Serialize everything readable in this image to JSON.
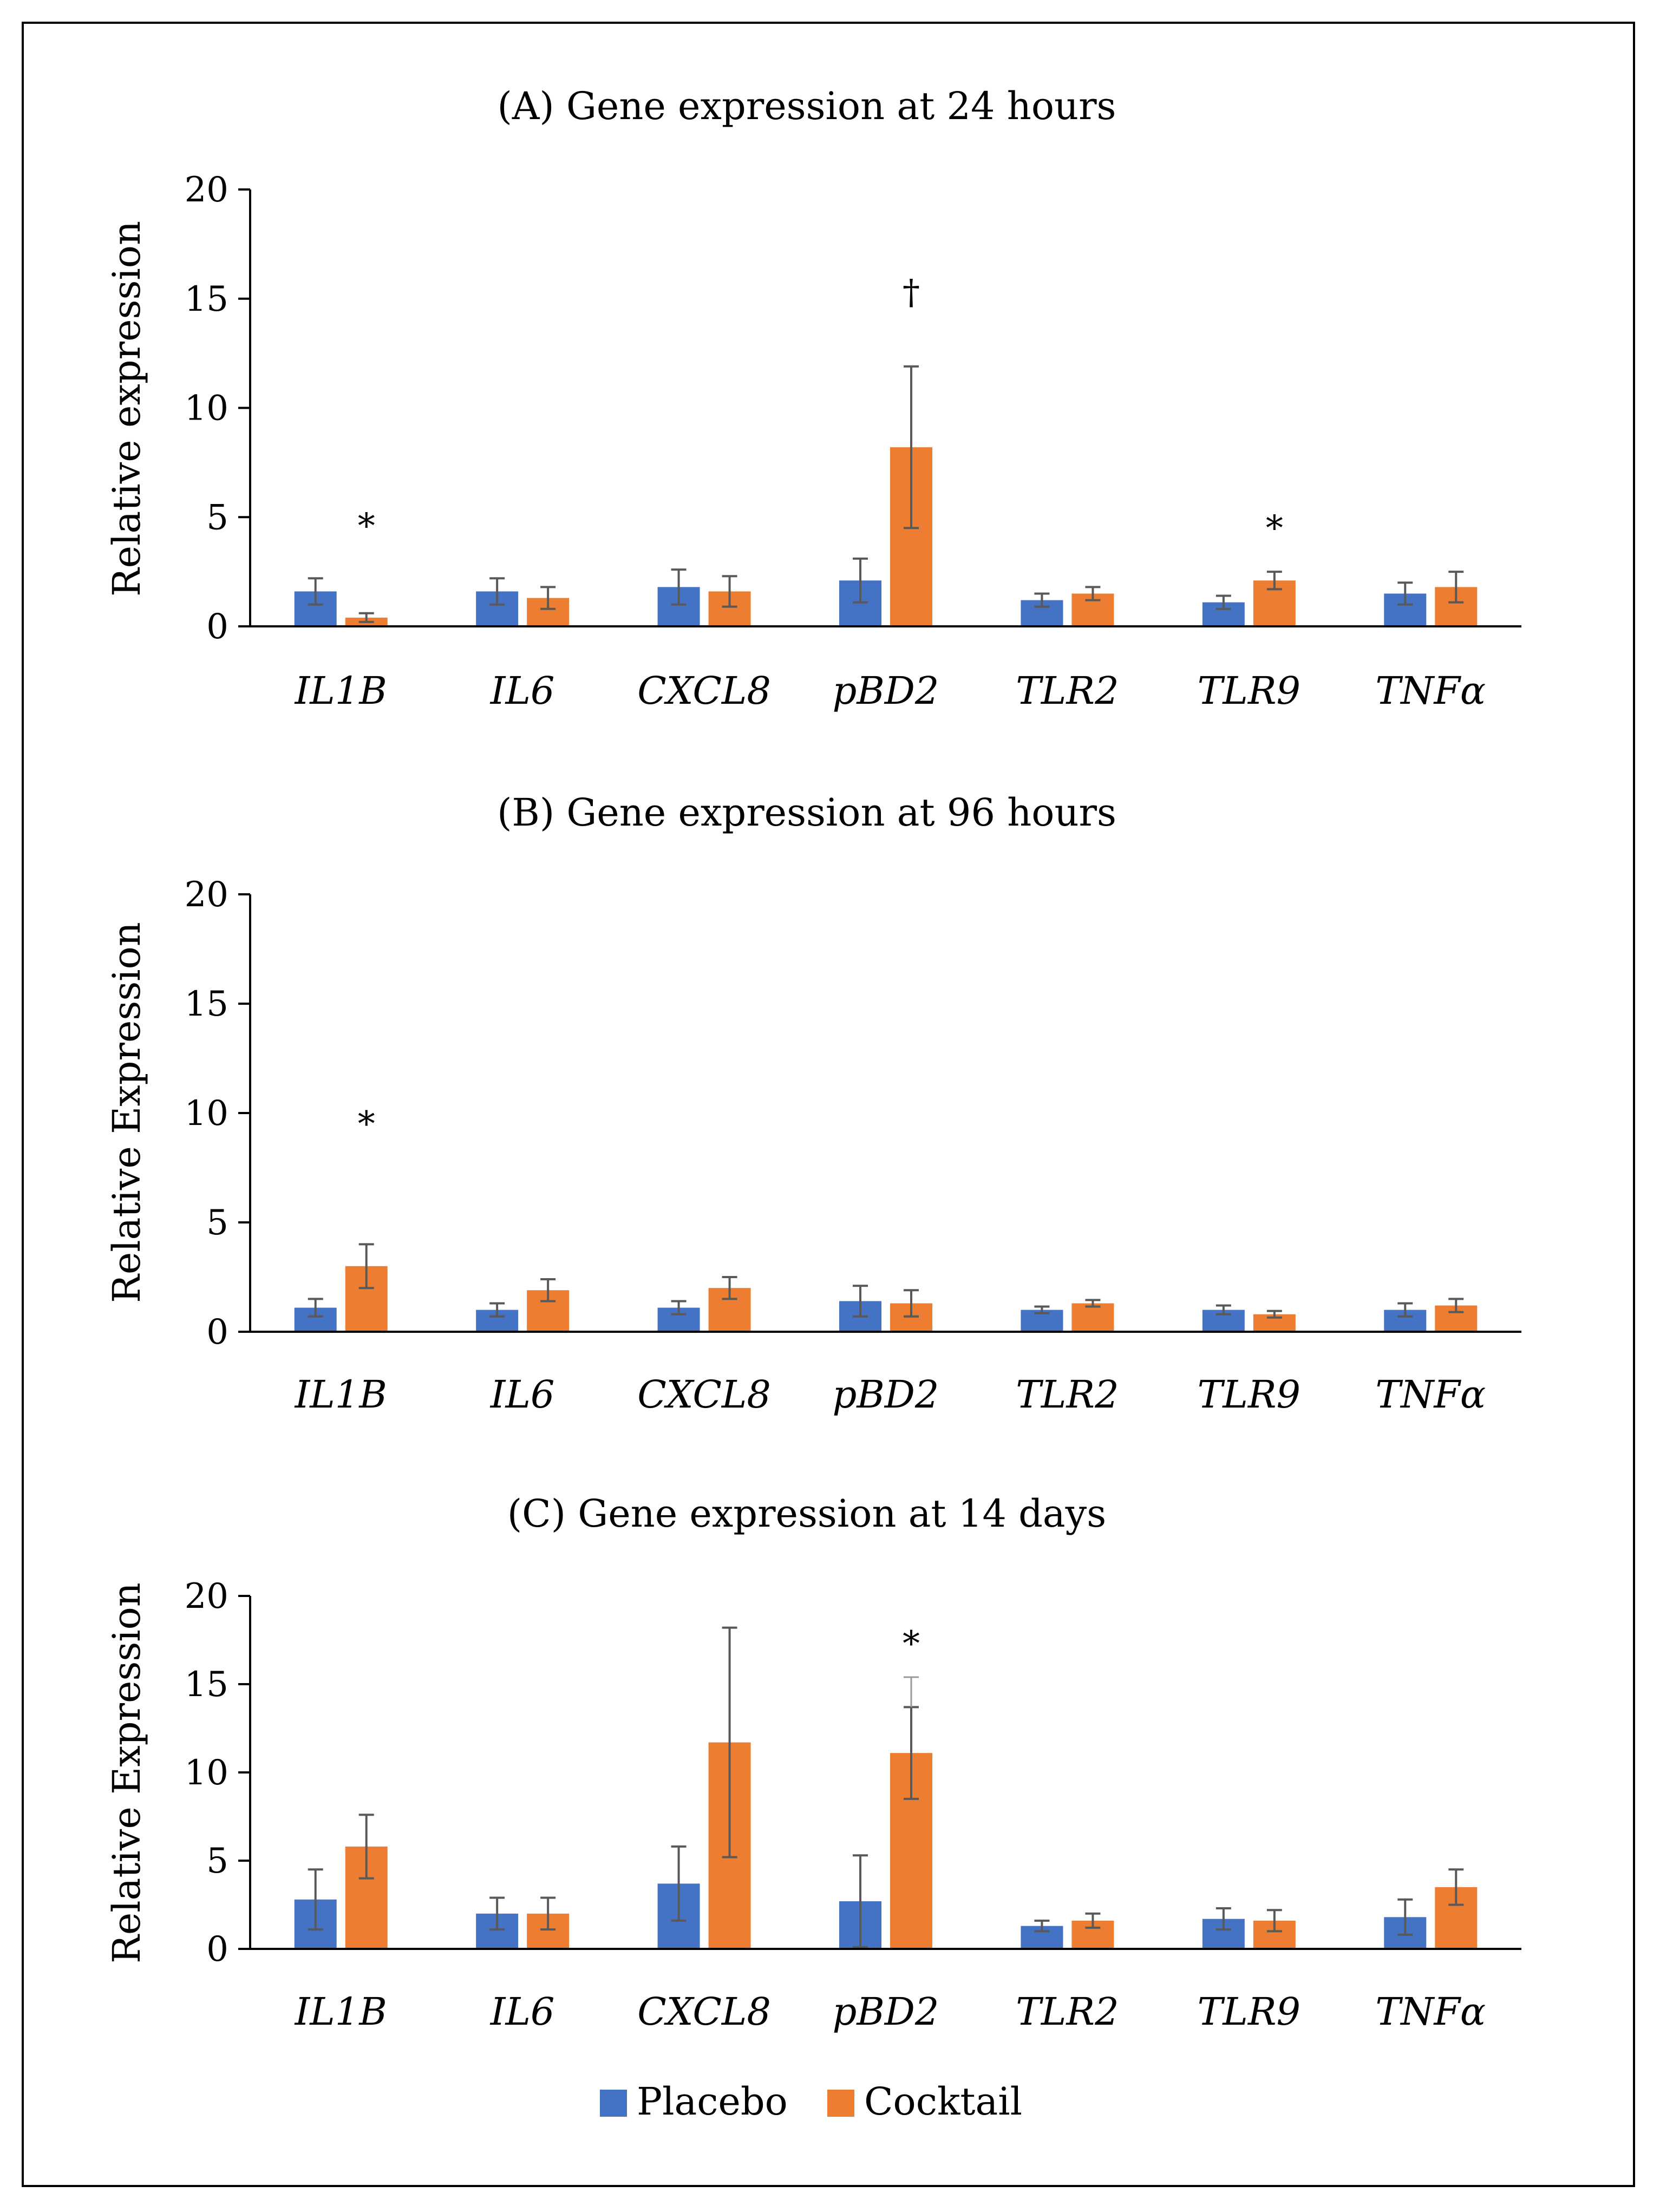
{
  "chart_data": [
    {
      "type": "bar",
      "title": "(A) Gene expression at 24 hours",
      "ylabel": "Relative expression",
      "xlabel": "",
      "ylim": [
        0,
        20
      ],
      "yticks": [
        "0",
        "5",
        "10",
        "15",
        "20"
      ],
      "categories": [
        "IL1B",
        "IL6",
        "CXCL8",
        "pBD2",
        "TLR2",
        "TLR9",
        "TNFα"
      ],
      "series": [
        {
          "name": "Placebo",
          "values": [
            1.6,
            1.6,
            1.8,
            2.1,
            1.2,
            1.1,
            1.5
          ],
          "errors": [
            0.6,
            0.6,
            0.8,
            1.0,
            0.3,
            0.3,
            0.5
          ]
        },
        {
          "name": "Cocktail",
          "values": [
            0.4,
            1.3,
            1.6,
            8.2,
            1.5,
            2.1,
            1.8
          ],
          "errors": [
            0.2,
            0.5,
            0.7,
            3.7,
            0.3,
            0.4,
            0.7
          ]
        }
      ],
      "annotations": [
        {
          "category": "IL1B",
          "series": "Cocktail",
          "text": "*",
          "y": 4.6
        },
        {
          "category": "pBD2",
          "series": "Cocktail",
          "text": "†",
          "y": 15.3
        },
        {
          "category": "TLR9",
          "series": "Cocktail",
          "text": "*",
          "y": 4.5
        }
      ]
    },
    {
      "type": "bar",
      "title": "(B) Gene expression at 96 hours",
      "ylabel": "Relative Expression",
      "xlabel": "",
      "ylim": [
        0,
        20
      ],
      "yticks": [
        "0",
        "5",
        "10",
        "15",
        "20"
      ],
      "categories": [
        "IL1B",
        "IL6",
        "CXCL8",
        "pBD2",
        "TLR2",
        "TLR9",
        "TNFα"
      ],
      "series": [
        {
          "name": "Placebo",
          "values": [
            1.1,
            1.0,
            1.1,
            1.4,
            1.0,
            1.0,
            1.0
          ],
          "errors": [
            0.4,
            0.3,
            0.3,
            0.7,
            0.15,
            0.2,
            0.3
          ]
        },
        {
          "name": "Cocktail",
          "values": [
            3.0,
            1.9,
            2.0,
            1.3,
            1.3,
            0.8,
            1.2
          ],
          "errors": [
            1.0,
            0.5,
            0.5,
            0.6,
            0.15,
            0.15,
            0.3
          ]
        }
      ],
      "annotations": [
        {
          "category": "IL1B",
          "series": "Cocktail",
          "text": "*",
          "y": 9.5
        }
      ]
    },
    {
      "type": "bar",
      "title": "(C) Gene expression at 14 days",
      "ylabel": "Relative Expression",
      "xlabel": "",
      "ylim": [
        0,
        20
      ],
      "yticks": [
        "0",
        "5",
        "10",
        "15",
        "20"
      ],
      "categories": [
        "IL1B",
        "IL6",
        "CXCL8",
        "pBD2",
        "TLR2",
        "TLR9",
        "TNFα"
      ],
      "series": [
        {
          "name": "Placebo",
          "values": [
            2.8,
            2.0,
            3.7,
            2.7,
            1.3,
            1.7,
            1.8
          ],
          "errors": [
            1.7,
            0.9,
            2.1,
            2.6,
            0.3,
            0.6,
            1.0
          ]
        },
        {
          "name": "Cocktail",
          "values": [
            5.8,
            2.0,
            11.7,
            11.1,
            1.6,
            1.6,
            3.5
          ],
          "errors": [
            1.8,
            0.9,
            6.5,
            2.6,
            0.4,
            0.6,
            1.0
          ]
        }
      ],
      "extra_error_caps": [
        {
          "category": "pBD2",
          "series": "Cocktail",
          "y": 15.4
        }
      ],
      "annotations": [
        {
          "category": "pBD2",
          "series": "Cocktail",
          "text": "*",
          "y": 17.3
        }
      ]
    }
  ],
  "legend": {
    "position": "bottom-center",
    "items": [
      {
        "label": "Placebo",
        "color": "#4472C4"
      },
      {
        "label": "Cocktail",
        "color": "#ED7D31"
      }
    ]
  },
  "colors": {
    "placebo": "#4472C4",
    "cocktail": "#ED7D31",
    "error": "#595959",
    "axis": "#000000"
  }
}
